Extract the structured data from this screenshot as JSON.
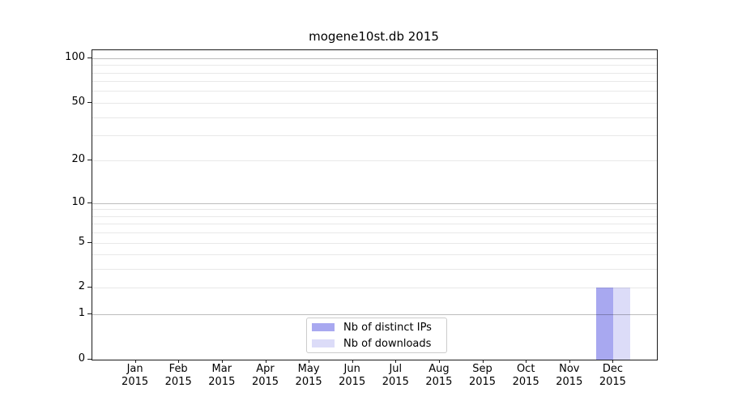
{
  "chart_data": {
    "type": "bar",
    "title": "mogene10st.db 2015",
    "categories": [
      "Jan 2015",
      "Feb 2015",
      "Mar 2015",
      "Apr 2015",
      "May 2015",
      "Jun 2015",
      "Jul 2015",
      "Aug 2015",
      "Sep 2015",
      "Oct 2015",
      "Nov 2015",
      "Dec 2015"
    ],
    "x_tick_months": [
      "Jan",
      "Feb",
      "Mar",
      "Apr",
      "May",
      "Jun",
      "Jul",
      "Aug",
      "Sep",
      "Oct",
      "Nov",
      "Dec"
    ],
    "x_tick_year": "2015",
    "series": [
      {
        "name": "Nb of distinct IPs",
        "color": "#a8a8f0",
        "values": [
          0,
          0,
          0,
          0,
          0,
          0,
          0,
          0,
          0,
          0,
          0,
          2
        ]
      },
      {
        "name": "Nb of downloads",
        "color": "#dcdcf8",
        "values": [
          0,
          0,
          0,
          0,
          0,
          0,
          0,
          0,
          0,
          0,
          0,
          2
        ]
      }
    ],
    "yscale": "log1p",
    "ylim": [
      0,
      113
    ],
    "y_tick_values": [
      0,
      1,
      2,
      5,
      10,
      20,
      50,
      100
    ],
    "y_tick_labels": [
      "0",
      "1",
      "2",
      "5",
      "10",
      "20",
      "50",
      "100"
    ],
    "y_major_gridlines": [
      1,
      10,
      100
    ],
    "y_minor_gridlines": [
      2,
      3,
      4,
      5,
      6,
      7,
      8,
      9,
      20,
      30,
      40,
      50,
      60,
      70,
      80,
      90
    ],
    "grid": true,
    "legend_position": "lower center",
    "legend_items": [
      "Nb of distinct IPs",
      "Nb of downloads"
    ]
  }
}
